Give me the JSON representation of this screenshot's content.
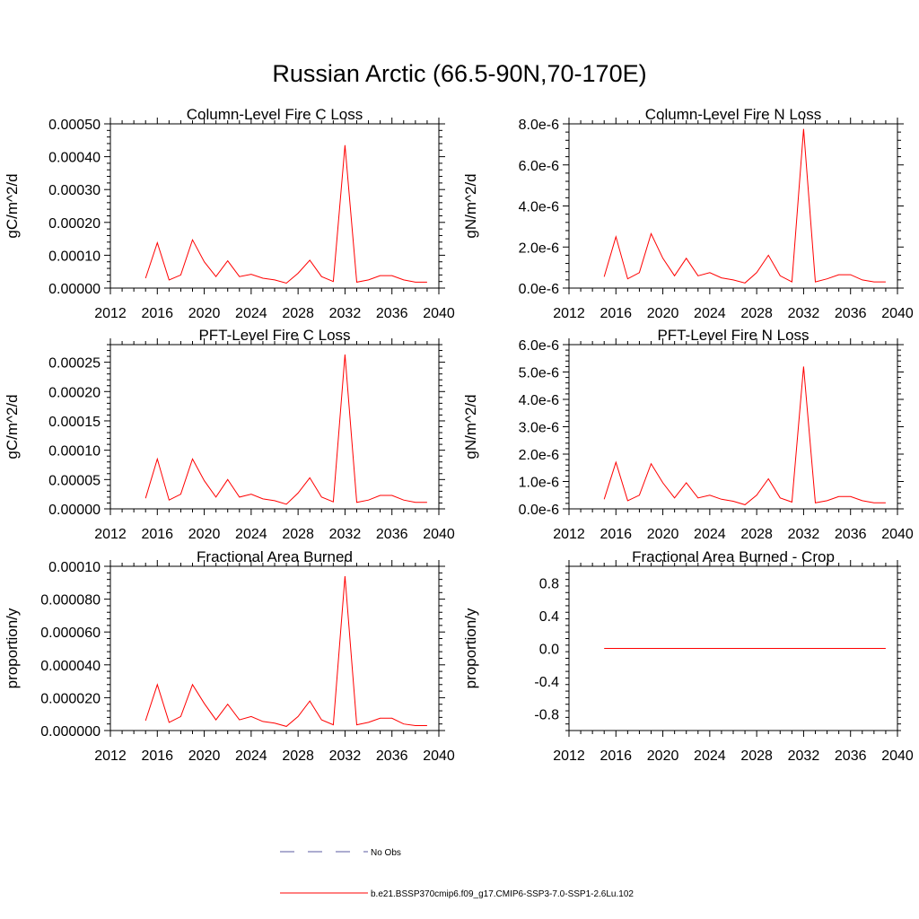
{
  "page": {
    "title": "Russian Arctic (66.5-90N,70-170E)"
  },
  "colors": {
    "series": "#ff0000",
    "obs": "#5a5aa0",
    "axis": "#000000"
  },
  "legend": {
    "placement": "bottom-center",
    "items": [
      {
        "label": "No Obs",
        "style": "dashed",
        "color": "#5a5aa0"
      },
      {
        "label": "b.e21.BSSP370cmip6.f09_g17.CMIP6-SSP3-7.0-SSP1-2.6Lu.102",
        "style": "solid",
        "color": "#ff0000"
      }
    ]
  },
  "chart_data": [
    {
      "type": "line",
      "title": "Column-Level Fire C Loss",
      "ylabel": "gC/m^2/d",
      "xlim": [
        2012,
        2040
      ],
      "ylim": [
        0,
        0.0005
      ],
      "xticks": [
        "2012",
        "2016",
        "2020",
        "2024",
        "2028",
        "2032",
        "2036",
        "2040"
      ],
      "yticks": [
        "0.00000",
        "0.00010",
        "0.00020",
        "0.00030",
        "0.00040",
        "0.00050"
      ],
      "x": [
        2015,
        2016,
        2017,
        2018,
        2019,
        2020,
        2021,
        2022,
        2023,
        2024,
        2025,
        2026,
        2027,
        2028,
        2029,
        2030,
        2031,
        2032,
        2033,
        2034,
        2035,
        2036,
        2037,
        2038,
        2039
      ],
      "series": [
        {
          "values": [
            3e-05,
            0.000138,
            2.5e-05,
            4e-05,
            0.000147,
            8e-05,
            3.5e-05,
            8.3e-05,
            3.5e-05,
            4.2e-05,
            3e-05,
            2.5e-05,
            1.5e-05,
            4.5e-05,
            8.5e-05,
            3.5e-05,
            2e-05,
            0.000435,
            1.8e-05,
            2.5e-05,
            3.8e-05,
            3.8e-05,
            2.5e-05,
            1.8e-05,
            1.8e-05
          ]
        }
      ]
    },
    {
      "type": "line",
      "title": "Column-Level Fire N Loss",
      "ylabel": "gN/m^2/d",
      "xlim": [
        2012,
        2040
      ],
      "ylim": [
        0,
        8e-06
      ],
      "xticks": [
        "2012",
        "2016",
        "2020",
        "2024",
        "2028",
        "2032",
        "2036",
        "2040"
      ],
      "yticks": [
        "0.0e-6",
        "2.0e-6",
        "4.0e-6",
        "6.0e-6",
        "8.0e-6"
      ],
      "x": [
        2015,
        2016,
        2017,
        2018,
        2019,
        2020,
        2021,
        2022,
        2023,
        2024,
        2025,
        2026,
        2027,
        2028,
        2029,
        2030,
        2031,
        2032,
        2033,
        2034,
        2035,
        2036,
        2037,
        2038,
        2039
      ],
      "series": [
        {
          "values": [
            5.5e-07,
            2.5e-06,
            4.5e-07,
            7.5e-07,
            2.65e-06,
            1.45e-06,
            6e-07,
            1.45e-06,
            6e-07,
            7.5e-07,
            5e-07,
            4e-07,
            2.5e-07,
            7.5e-07,
            1.6e-06,
            6e-07,
            3e-07,
            7.75e-06,
            3e-07,
            4.5e-07,
            6.5e-07,
            6.5e-07,
            4e-07,
            3e-07,
            3e-07
          ]
        }
      ]
    },
    {
      "type": "line",
      "title": "PFT-Level Fire C Loss",
      "ylabel": "gC/m^2/d",
      "xlim": [
        2012,
        2040
      ],
      "ylim": [
        0,
        0.00028
      ],
      "xticks": [
        "2012",
        "2016",
        "2020",
        "2024",
        "2028",
        "2032",
        "2036",
        "2040"
      ],
      "yticks": [
        "0.00000",
        "0.00005",
        "0.00010",
        "0.00015",
        "0.00020",
        "0.00025"
      ],
      "x": [
        2015,
        2016,
        2017,
        2018,
        2019,
        2020,
        2021,
        2022,
        2023,
        2024,
        2025,
        2026,
        2027,
        2028,
        2029,
        2030,
        2031,
        2032,
        2033,
        2034,
        2035,
        2036,
        2037,
        2038,
        2039
      ],
      "series": [
        {
          "values": [
            1.8e-05,
            8.5e-05,
            1.5e-05,
            2.5e-05,
            8.5e-05,
            4.8e-05,
            2e-05,
            5e-05,
            2e-05,
            2.5e-05,
            1.7e-05,
            1.4e-05,
            8e-06,
            2.7e-05,
            5.3e-05,
            2e-05,
            1.2e-05,
            0.000263,
            1.1e-05,
            1.5e-05,
            2.3e-05,
            2.3e-05,
            1.5e-05,
            1.1e-05,
            1.1e-05
          ]
        }
      ]
    },
    {
      "type": "line",
      "title": "PFT-Level Fire N Loss",
      "ylabel": "gN/m^2/d",
      "xlim": [
        2012,
        2040
      ],
      "ylim": [
        0,
        6e-06
      ],
      "xticks": [
        "2012",
        "2016",
        "2020",
        "2024",
        "2028",
        "2032",
        "2036",
        "2040"
      ],
      "yticks": [
        "0.0e-6",
        "1.0e-6",
        "2.0e-6",
        "3.0e-6",
        "4.0e-6",
        "5.0e-6",
        "6.0e-6"
      ],
      "x": [
        2015,
        2016,
        2017,
        2018,
        2019,
        2020,
        2021,
        2022,
        2023,
        2024,
        2025,
        2026,
        2027,
        2028,
        2029,
        2030,
        2031,
        2032,
        2033,
        2034,
        2035,
        2036,
        2037,
        2038,
        2039
      ],
      "series": [
        {
          "values": [
            3.5e-07,
            1.7e-06,
            3e-07,
            5e-07,
            1.65e-06,
            9.5e-07,
            4e-07,
            9.5e-07,
            4e-07,
            5e-07,
            3.5e-07,
            2.8e-07,
            1.5e-07,
            5e-07,
            1.1e-06,
            4e-07,
            2.5e-07,
            5.2e-06,
            2.2e-07,
            3e-07,
            4.5e-07,
            4.5e-07,
            3e-07,
            2.2e-07,
            2.2e-07
          ]
        }
      ]
    },
    {
      "type": "line",
      "title": "Fractional Area Burned",
      "ylabel": "proportion/y",
      "xlim": [
        2012,
        2040
      ],
      "ylim": [
        0,
        0.0001
      ],
      "xticks": [
        "2012",
        "2016",
        "2020",
        "2024",
        "2028",
        "2032",
        "2036",
        "2040"
      ],
      "yticks": [
        "0.000000",
        "0.000020",
        "0.000040",
        "0.000060",
        "0.000080",
        "0.00010"
      ],
      "x": [
        2015,
        2016,
        2017,
        2018,
        2019,
        2020,
        2021,
        2022,
        2023,
        2024,
        2025,
        2026,
        2027,
        2028,
        2029,
        2030,
        2031,
        2032,
        2033,
        2034,
        2035,
        2036,
        2037,
        2038,
        2039
      ],
      "series": [
        {
          "values": [
            6e-06,
            2.8e-05,
            5e-06,
            8.5e-06,
            2.8e-05,
            1.65e-05,
            6.5e-06,
            1.6e-05,
            6.5e-06,
            8.5e-06,
            5.5e-06,
            4.5e-06,
            2.5e-06,
            8.5e-06,
            1.8e-05,
            6.5e-06,
            3.5e-06,
            9.4e-05,
            3.5e-06,
            5e-06,
            7.5e-06,
            7.5e-06,
            4e-06,
            3e-06,
            3e-06
          ]
        }
      ]
    },
    {
      "type": "line",
      "title": "Fractional Area Burned - Crop",
      "ylabel": "proportion/y",
      "xlim": [
        2012,
        2040
      ],
      "ylim": [
        -1,
        1
      ],
      "xticks": [
        "2012",
        "2016",
        "2020",
        "2024",
        "2028",
        "2032",
        "2036",
        "2040"
      ],
      "yticks": [
        "-0.8",
        "-0.4",
        "0.0",
        "0.4",
        "0.8"
      ],
      "x": [
        2015,
        2016,
        2017,
        2018,
        2019,
        2020,
        2021,
        2022,
        2023,
        2024,
        2025,
        2026,
        2027,
        2028,
        2029,
        2030,
        2031,
        2032,
        2033,
        2034,
        2035,
        2036,
        2037,
        2038,
        2039
      ],
      "series": [
        {
          "values": [
            0,
            0,
            0,
            0,
            0,
            0,
            0,
            0,
            0,
            0,
            0,
            0,
            0,
            0,
            0,
            0,
            0,
            0,
            0,
            0,
            0,
            0,
            0,
            0,
            0
          ]
        }
      ]
    }
  ]
}
